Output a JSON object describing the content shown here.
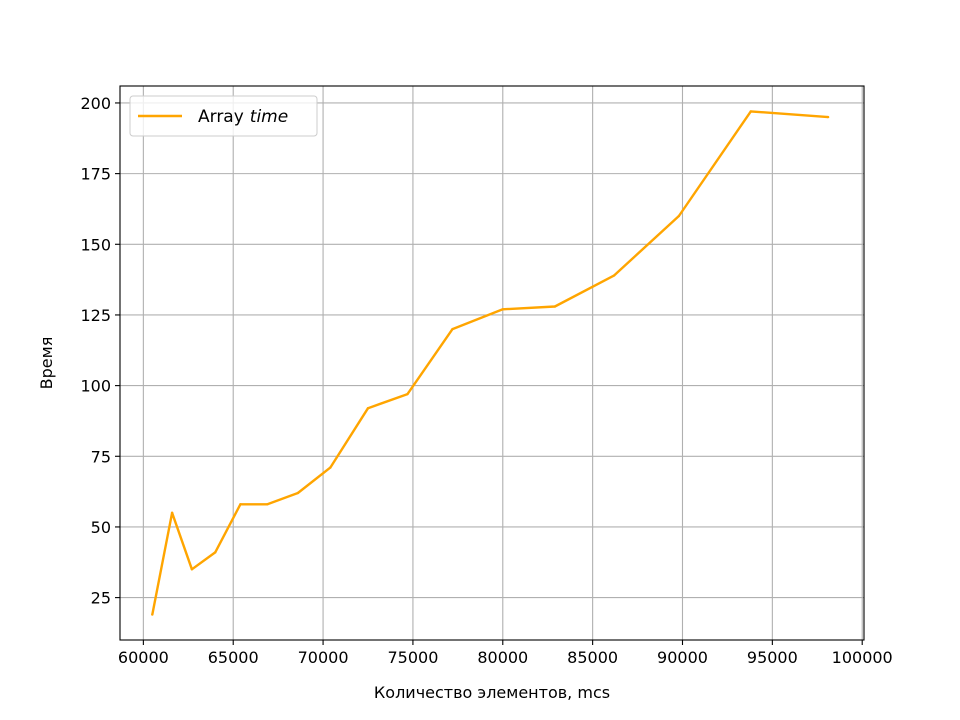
{
  "chart_data": {
    "type": "line",
    "title": "",
    "xlabel": "Количество элементов, mcs",
    "ylabel": "Время",
    "xlim": [
      58700,
      100100
    ],
    "ylim": [
      10,
      206
    ],
    "xticks": [
      60000,
      65000,
      70000,
      75000,
      80000,
      85000,
      90000,
      95000,
      100000
    ],
    "yticks": [
      25,
      50,
      75,
      100,
      125,
      150,
      175,
      200
    ],
    "grid": true,
    "legend_position": "upper-left",
    "series": [
      {
        "name": "Array",
        "name_italic": "time",
        "color": "#ffa500",
        "x": [
          60500,
          61600,
          62700,
          64000,
          65400,
          66900,
          68600,
          70400,
          72500,
          74700,
          77200,
          80000,
          82900,
          86200,
          89800,
          93800,
          98100
        ],
        "y": [
          19,
          55,
          35,
          41,
          58,
          58,
          62,
          71,
          92,
          97,
          120,
          127,
          128,
          139,
          160,
          197,
          195
        ]
      }
    ]
  }
}
